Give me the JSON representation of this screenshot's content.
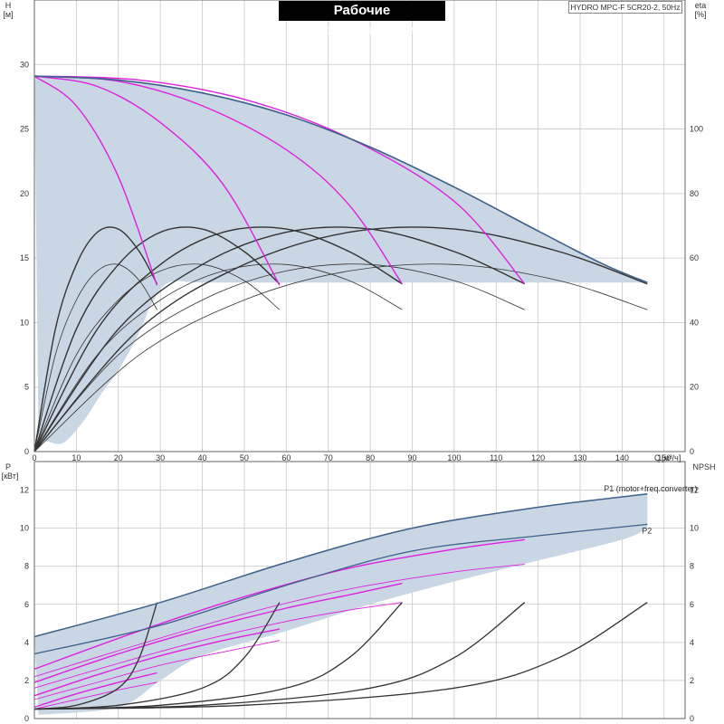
{
  "title": "Рабочие характеристики",
  "model": "HYDRO MPC-F 5CR20-2, 50Hz",
  "colors": {
    "band_fill": "#c9d6e3",
    "envelope": "#3d6189",
    "speed_curve": "#e020e0",
    "eta_curve": "#333333",
    "background": "#ffffff"
  },
  "chart_data": [
    {
      "type": "line",
      "name": "top",
      "x_label_text": "Q",
      "x_unit": "[м³/ч]",
      "y_left_label": "H",
      "y_left_unit": "[м]",
      "y_right_label": "eta",
      "y_right_unit": "[%]",
      "xlim": [
        0,
        155
      ],
      "ylim_left": [
        0,
        35
      ],
      "ylim_right": [
        0,
        140
      ],
      "x_ticks": [
        0,
        10,
        20,
        30,
        40,
        50,
        60,
        70,
        80,
        90,
        100,
        110,
        120,
        130,
        140,
        150
      ],
      "y_left_ticks": [
        0,
        5,
        10,
        15,
        20,
        25,
        30
      ],
      "y_right_ticks": [
        0,
        20,
        40,
        60,
        80,
        100
      ],
      "grid": true,
      "envelope": {
        "x": [
          0,
          20,
          40,
          60,
          80,
          100,
          120,
          135,
          146
        ],
        "y": [
          29.1,
          28.8,
          27.8,
          26.1,
          23.6,
          20.5,
          17.1,
          14.6,
          13.1
        ]
      },
      "operating_region_lower": {
        "x": [
          1,
          3,
          7,
          12,
          16,
          20,
          24,
          26,
          28,
          32,
          40,
          60,
          146
        ],
        "y": [
          1.0,
          0.8,
          0.7,
          2.5,
          4.5,
          6.3,
          8.6,
          10.0,
          11.5,
          13.1,
          13.1,
          13.1,
          13.1
        ]
      },
      "speed_curves_H": [
        {
          "x": [
            0,
            10,
            20,
            29.2
          ],
          "y": [
            29.1,
            26.8,
            21.3,
            12.9
          ]
        },
        {
          "x": [
            0,
            15,
            30,
            45,
            58.4
          ],
          "y": [
            29.1,
            28.3,
            25.5,
            20.7,
            12.9
          ]
        },
        {
          "x": [
            0,
            20,
            40,
            60,
            75,
            87.6
          ],
          "y": [
            29.1,
            28.7,
            26.8,
            23.4,
            19.1,
            13.0
          ]
        },
        {
          "x": [
            0,
            25,
            50,
            75,
            100,
            116.8
          ],
          "y": [
            29.1,
            28.8,
            27.3,
            24.3,
            19.4,
            13.0
          ]
        }
      ],
      "eta_curves": [
        {
          "x": [
            0,
            5,
            10,
            15,
            20,
            25,
            29.2
          ],
          "y": [
            0,
            38,
            58,
            68,
            69,
            62,
            52
          ]
        },
        {
          "x": [
            0,
            10,
            20,
            30,
            40,
            50,
            58.4
          ],
          "y": [
            0,
            38,
            58,
            68,
            69,
            62,
            52
          ]
        },
        {
          "x": [
            0,
            15,
            30,
            45,
            60,
            75,
            87.6
          ],
          "y": [
            0,
            38,
            58,
            68,
            69,
            62,
            52
          ]
        },
        {
          "x": [
            0,
            20,
            40,
            60,
            80,
            100,
            116.8
          ],
          "y": [
            0,
            38,
            58,
            68,
            69,
            62,
            52
          ]
        },
        {
          "x": [
            0,
            25,
            50,
            75,
            100,
            125,
            146
          ],
          "y": [
            0,
            38,
            58,
            68,
            69,
            62,
            52
          ]
        },
        {
          "x": [
            0,
            5,
            10,
            15,
            20,
            25,
            29.2
          ],
          "y": [
            0,
            30,
            47,
            56,
            58,
            53,
            44
          ]
        },
        {
          "x": [
            0,
            10,
            20,
            30,
            40,
            50,
            58.4
          ],
          "y": [
            0,
            30,
            47,
            56,
            58,
            53,
            44
          ]
        },
        {
          "x": [
            0,
            15,
            30,
            45,
            60,
            75,
            87.6
          ],
          "y": [
            0,
            30,
            47,
            56,
            58,
            53,
            44
          ]
        },
        {
          "x": [
            0,
            20,
            40,
            60,
            80,
            100,
            116.8
          ],
          "y": [
            0,
            30,
            47,
            56,
            58,
            53,
            44
          ]
        },
        {
          "x": [
            0,
            25,
            50,
            75,
            100,
            125,
            146
          ],
          "y": [
            0,
            30,
            47,
            56,
            58,
            53,
            44
          ]
        }
      ]
    },
    {
      "type": "line",
      "name": "bottom",
      "y_left_label": "P",
      "y_left_unit": "[кВт]",
      "y_right_label": "NPSH",
      "y_right_unit": "",
      "xlim": [
        0,
        155
      ],
      "ylim_left": [
        0,
        13.5
      ],
      "ylim_right": [
        0,
        13.5
      ],
      "y_left_ticks": [
        0,
        2,
        4,
        6,
        8,
        10,
        12
      ],
      "y_right_ticks": [
        0,
        2,
        4,
        6,
        8,
        10,
        12
      ],
      "grid": true,
      "series": [
        {
          "name": "P1 (motor+freq.converter)",
          "x": [
            0,
            30,
            60,
            90,
            120,
            146
          ],
          "y": [
            4.3,
            6.1,
            8.2,
            10.0,
            11.1,
            11.8
          ]
        },
        {
          "name": "P2",
          "x": [
            0,
            30,
            60,
            90,
            120,
            146
          ],
          "y": [
            3.4,
            4.9,
            7.0,
            8.8,
            9.6,
            10.2
          ]
        }
      ],
      "power_band_lower": {
        "x": [
          1,
          20,
          30,
          40,
          60,
          80,
          100,
          120,
          140,
          146
        ],
        "y": [
          0.2,
          0.6,
          2.0,
          3.3,
          4.6,
          6.0,
          7.2,
          8.3,
          9.4,
          10.0
        ]
      },
      "speed_power_curves": [
        {
          "x": [
            0,
            10,
            20,
            29.2
          ],
          "y": [
            0.6,
            1.3,
            1.9,
            2.4
          ]
        },
        {
          "x": [
            0,
            15,
            30,
            45,
            58.4
          ],
          "y": [
            1.2,
            2.3,
            3.3,
            4.1,
            4.7
          ]
        },
        {
          "x": [
            0,
            20,
            40,
            60,
            75,
            87.6
          ],
          "y": [
            1.9,
            3.4,
            4.7,
            5.8,
            6.5,
            7.1
          ]
        },
        {
          "x": [
            0,
            25,
            50,
            75,
            100,
            116.8
          ],
          "y": [
            2.6,
            4.6,
            6.4,
            7.9,
            8.9,
            9.4
          ]
        },
        {
          "x": [
            0,
            10,
            20,
            29.2
          ],
          "y": [
            0.5,
            1.0,
            1.5,
            1.9
          ]
        },
        {
          "x": [
            0,
            15,
            30,
            45,
            58.4
          ],
          "y": [
            1.0,
            1.9,
            2.8,
            3.5,
            4.1
          ]
        },
        {
          "x": [
            0,
            20,
            40,
            60,
            75,
            87.6
          ],
          "y": [
            1.6,
            2.9,
            4.1,
            5.1,
            5.7,
            6.1
          ]
        },
        {
          "x": [
            0,
            25,
            50,
            75,
            100,
            116.8
          ],
          "y": [
            2.2,
            3.9,
            5.5,
            6.8,
            7.7,
            8.1
          ]
        }
      ],
      "npsh_curves": [
        {
          "x": [
            0,
            10,
            20,
            25,
            29.2
          ],
          "y": [
            0.5,
            0.7,
            1.6,
            3.2,
            6.1
          ]
        },
        {
          "x": [
            0,
            20,
            40,
            50,
            58.4
          ],
          "y": [
            0.5,
            0.7,
            1.6,
            3.2,
            6.1
          ]
        },
        {
          "x": [
            0,
            30,
            60,
            75,
            87.6
          ],
          "y": [
            0.5,
            0.7,
            1.6,
            3.2,
            6.1
          ]
        },
        {
          "x": [
            0,
            40,
            80,
            100,
            116.8
          ],
          "y": [
            0.5,
            0.7,
            1.6,
            3.2,
            6.1
          ]
        },
        {
          "x": [
            0,
            50,
            100,
            125,
            146
          ],
          "y": [
            0.5,
            0.7,
            1.6,
            3.2,
            6.1
          ]
        }
      ]
    }
  ]
}
